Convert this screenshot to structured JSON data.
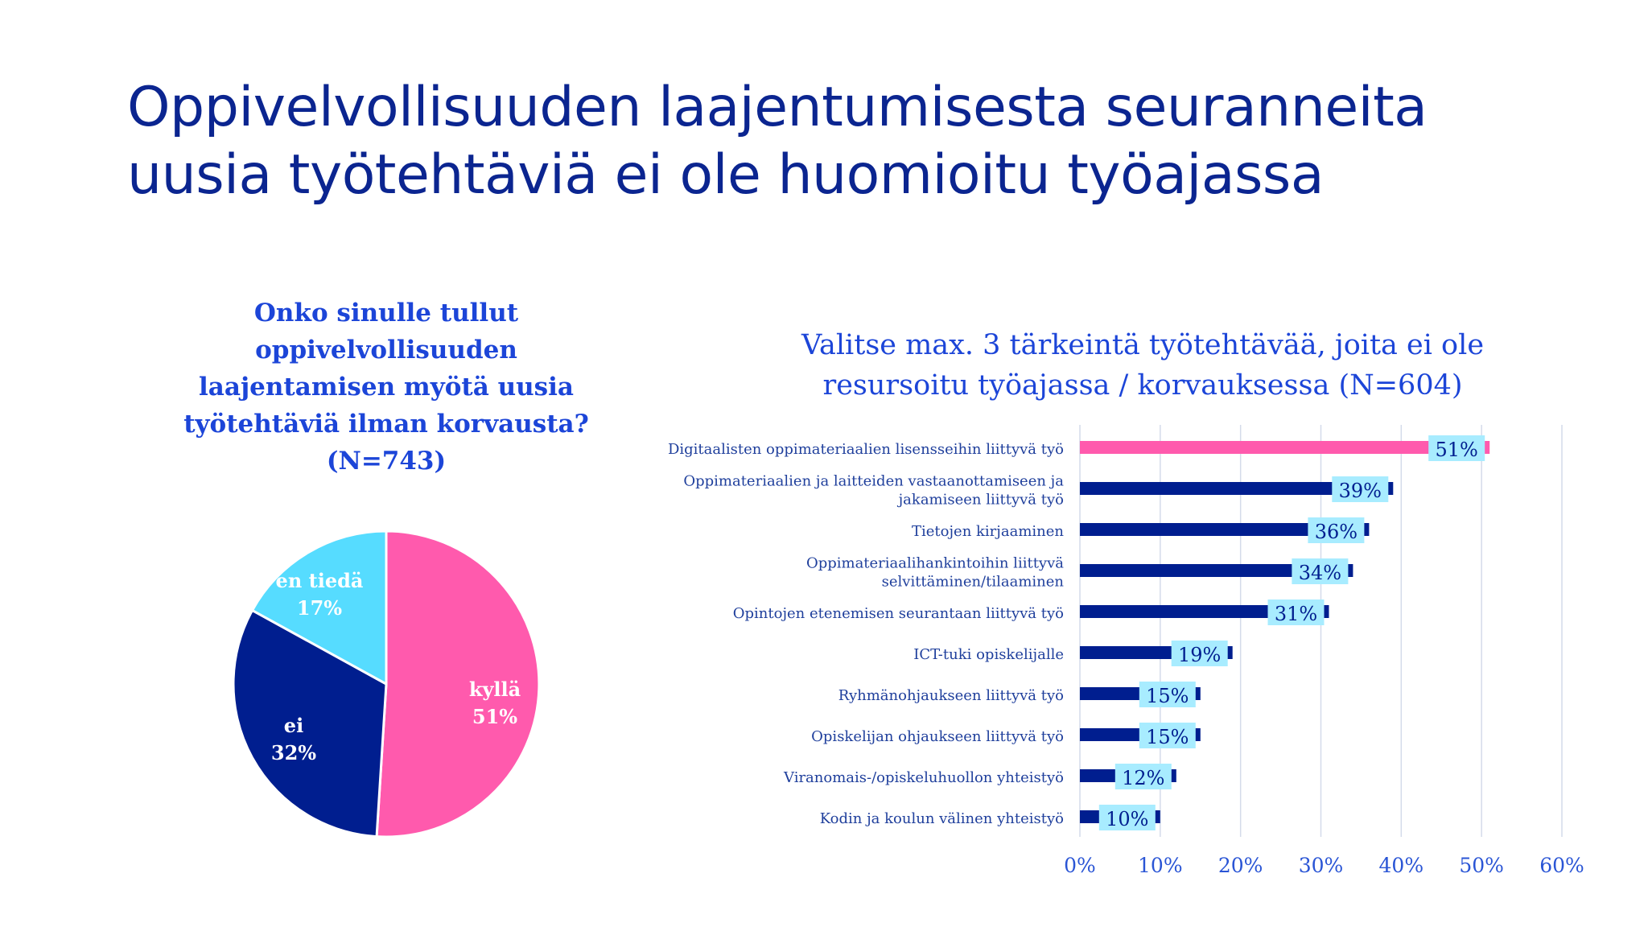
{
  "title_lines": [
    "Oppivelvollisuuden laajentumisesta seuranneita",
    "uusia työtehtäviä ei ole huomioitu työajassa"
  ],
  "colors": {
    "title": "#0b2590",
    "question": "#1c45d8",
    "pink": "#ff5aad",
    "navy": "#001e8f",
    "cyan": "#56dcff",
    "label_box": "#a8ecff",
    "grid": "#d4dbea",
    "axis_text": "#2a55d5",
    "category_text": "#1f3f9c"
  },
  "pie_question_lines": [
    "Onko sinulle tullut",
    "oppivelvollisuuden",
    "laajentamisen myötä uusia",
    "työtehtäviä ilman korvausta?",
    "(N=743)"
  ],
  "bar_question_lines": [
    "Valitse max. 3 tärkeintä työtehtävää, joita ei ole",
    "resursoitu työajassa / korvauksessa (N=604)"
  ],
  "chart_data": [
    {
      "type": "pie",
      "slices": [
        {
          "label": "kyllä",
          "value": 51,
          "value_label": "51%",
          "color": "#ff5aad"
        },
        {
          "label": "ei",
          "value": 32,
          "value_label": "32%",
          "color": "#001e8f"
        },
        {
          "label": "en tiedä",
          "value": 17,
          "value_label": "17%",
          "color": "#56dcff"
        }
      ]
    },
    {
      "type": "bar",
      "orientation": "horizontal",
      "categories": [
        [
          "Digitaalisten oppimateriaalien lisensseihin liittyvä työ"
        ],
        [
          "Oppimateriaalien ja laitteiden vastaanottamiseen ja",
          "jakamiseen liittyvä työ"
        ],
        [
          "Tietojen kirjaaminen"
        ],
        [
          "Oppimateriaalihankintoihin liittyvä",
          "selvittäminen/tilaaminen"
        ],
        [
          "Opintojen etenemisen seurantaan liittyvä työ"
        ],
        [
          "ICT-tuki opiskelijalle"
        ],
        [
          "Ryhmänohjaukseen liittyvä työ"
        ],
        [
          "Opiskelijan ohjaukseen liittyvä työ"
        ],
        [
          "Viranomais-/opiskeluhuollon yhteistyö"
        ],
        [
          "Kodin ja koulun välinen yhteistyö"
        ]
      ],
      "values": [
        51,
        39,
        36,
        34,
        31,
        19,
        15,
        15,
        12,
        10
      ],
      "value_labels": [
        "51%",
        "39%",
        "36%",
        "34%",
        "31%",
        "19%",
        "15%",
        "15%",
        "12%",
        "10%"
      ],
      "highlight_index": 0,
      "xlim": [
        0,
        60
      ],
      "xticks": [
        0,
        10,
        20,
        30,
        40,
        50,
        60
      ],
      "xtick_labels": [
        "0%",
        "10%",
        "20%",
        "30%",
        "40%",
        "50%",
        "60%"
      ],
      "grid": true
    }
  ]
}
